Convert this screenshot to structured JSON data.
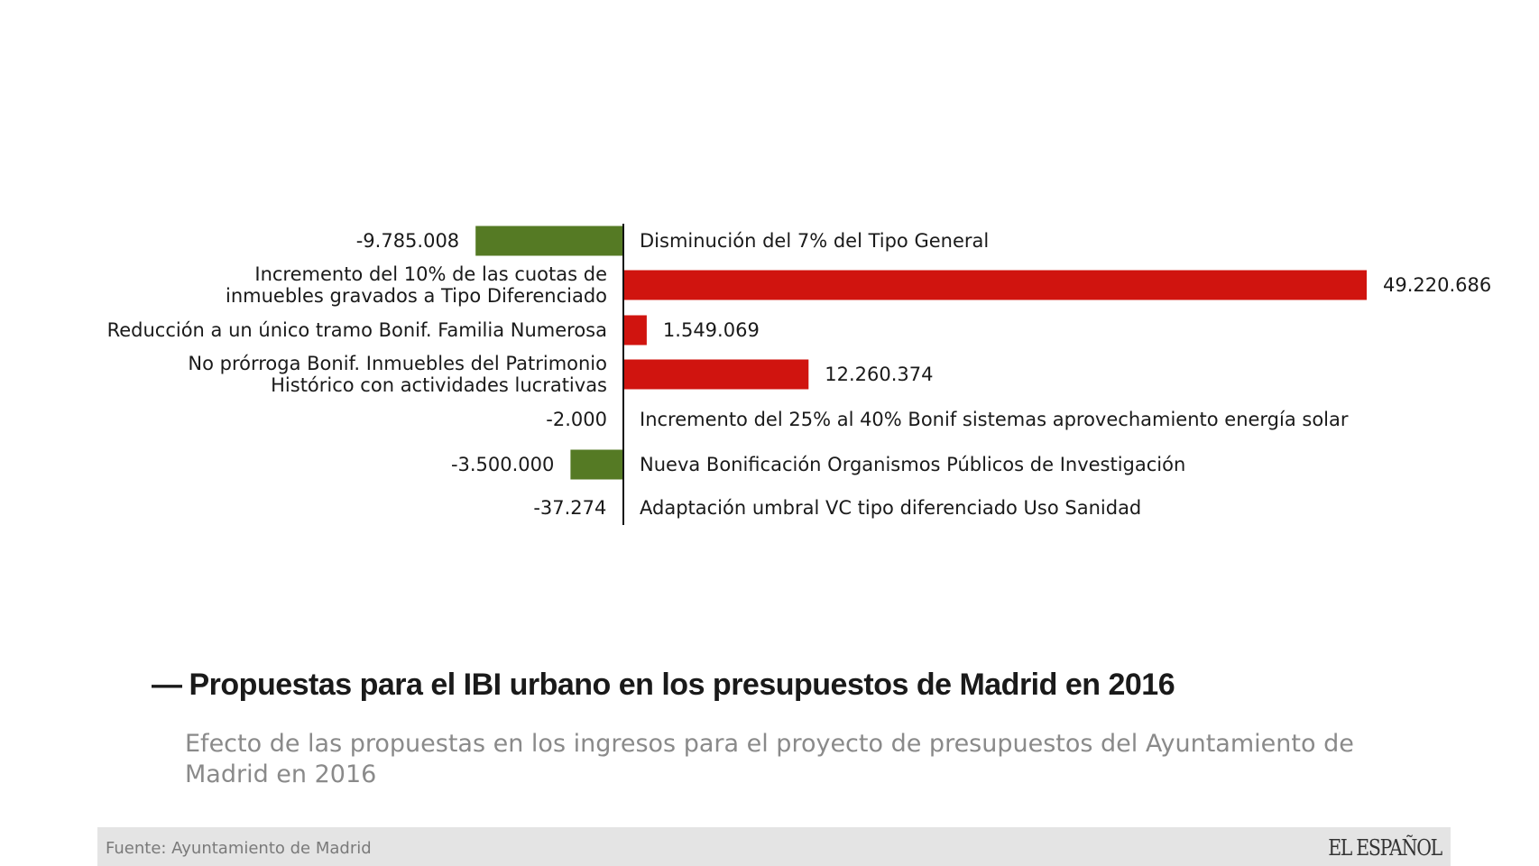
{
  "chart_data": {
    "type": "bar",
    "orientation": "horizontal",
    "categories": [
      "Disminución del 7% del Tipo General",
      "Incremento del 10% de las cuotas de inmuebles gravados a Tipo Diferenciado",
      "Reducción a un único tramo Bonif. Familia Numerosa",
      "No prórroga Bonif. Inmuebles del Patrimonio Histórico con actividades lucrativas",
      "Incremento del 25% al 40% Bonif sistemas aprovechamiento energía solar",
      "Nueva Bonificación Organismos Públicos de Investigación",
      "Adaptación umbral VC tipo diferenciado Uso Sanidad"
    ],
    "category_lines": [
      [
        "Disminución del 7% del Tipo General"
      ],
      [
        "Incremento del 10% de las cuotas de",
        "inmuebles gravados a Tipo Diferenciado"
      ],
      [
        "Reducción a un único tramo Bonif. Familia Numerosa"
      ],
      [
        "No prórroga Bonif. Inmuebles del Patrimonio",
        "Histórico con actividades lucrativas"
      ],
      [
        "Incremento del 25% al 40% Bonif sistemas aprovechamiento energía solar"
      ],
      [
        "Nueva Bonificación Organismos Públicos de Investigación"
      ],
      [
        "Adaptación umbral VC tipo diferenciado Uso Sanidad"
      ]
    ],
    "values": [
      -9785008,
      49220686,
      1549069,
      12260374,
      -2000,
      -3500000,
      -37274
    ],
    "value_labels": [
      "-9.785.008",
      "49.220.686",
      "1.549.069",
      "12.260.374",
      "-2.000",
      "-3.500.000",
      "-37.274"
    ],
    "positive_color": "#d0140f",
    "negative_color": "#557a24",
    "title": "Propuestas para el IBI urbano en los presupuestos de Madrid en 2016",
    "xlabel": "",
    "ylabel": "",
    "xlim": [
      -20000000,
      55000000
    ]
  },
  "header": {
    "dash": "—",
    "title": "Propuestas para el IBI urbano en los presupuestos de Madrid en 2016",
    "subtitle": "Efecto de las propuestas en los ingresos para el proyecto de presupuestos del Ayuntamiento de Madrid en 2016"
  },
  "footer": {
    "source": "Fuente: Ayuntamiento de Madrid",
    "logo": "EL ESPAÑOL"
  }
}
